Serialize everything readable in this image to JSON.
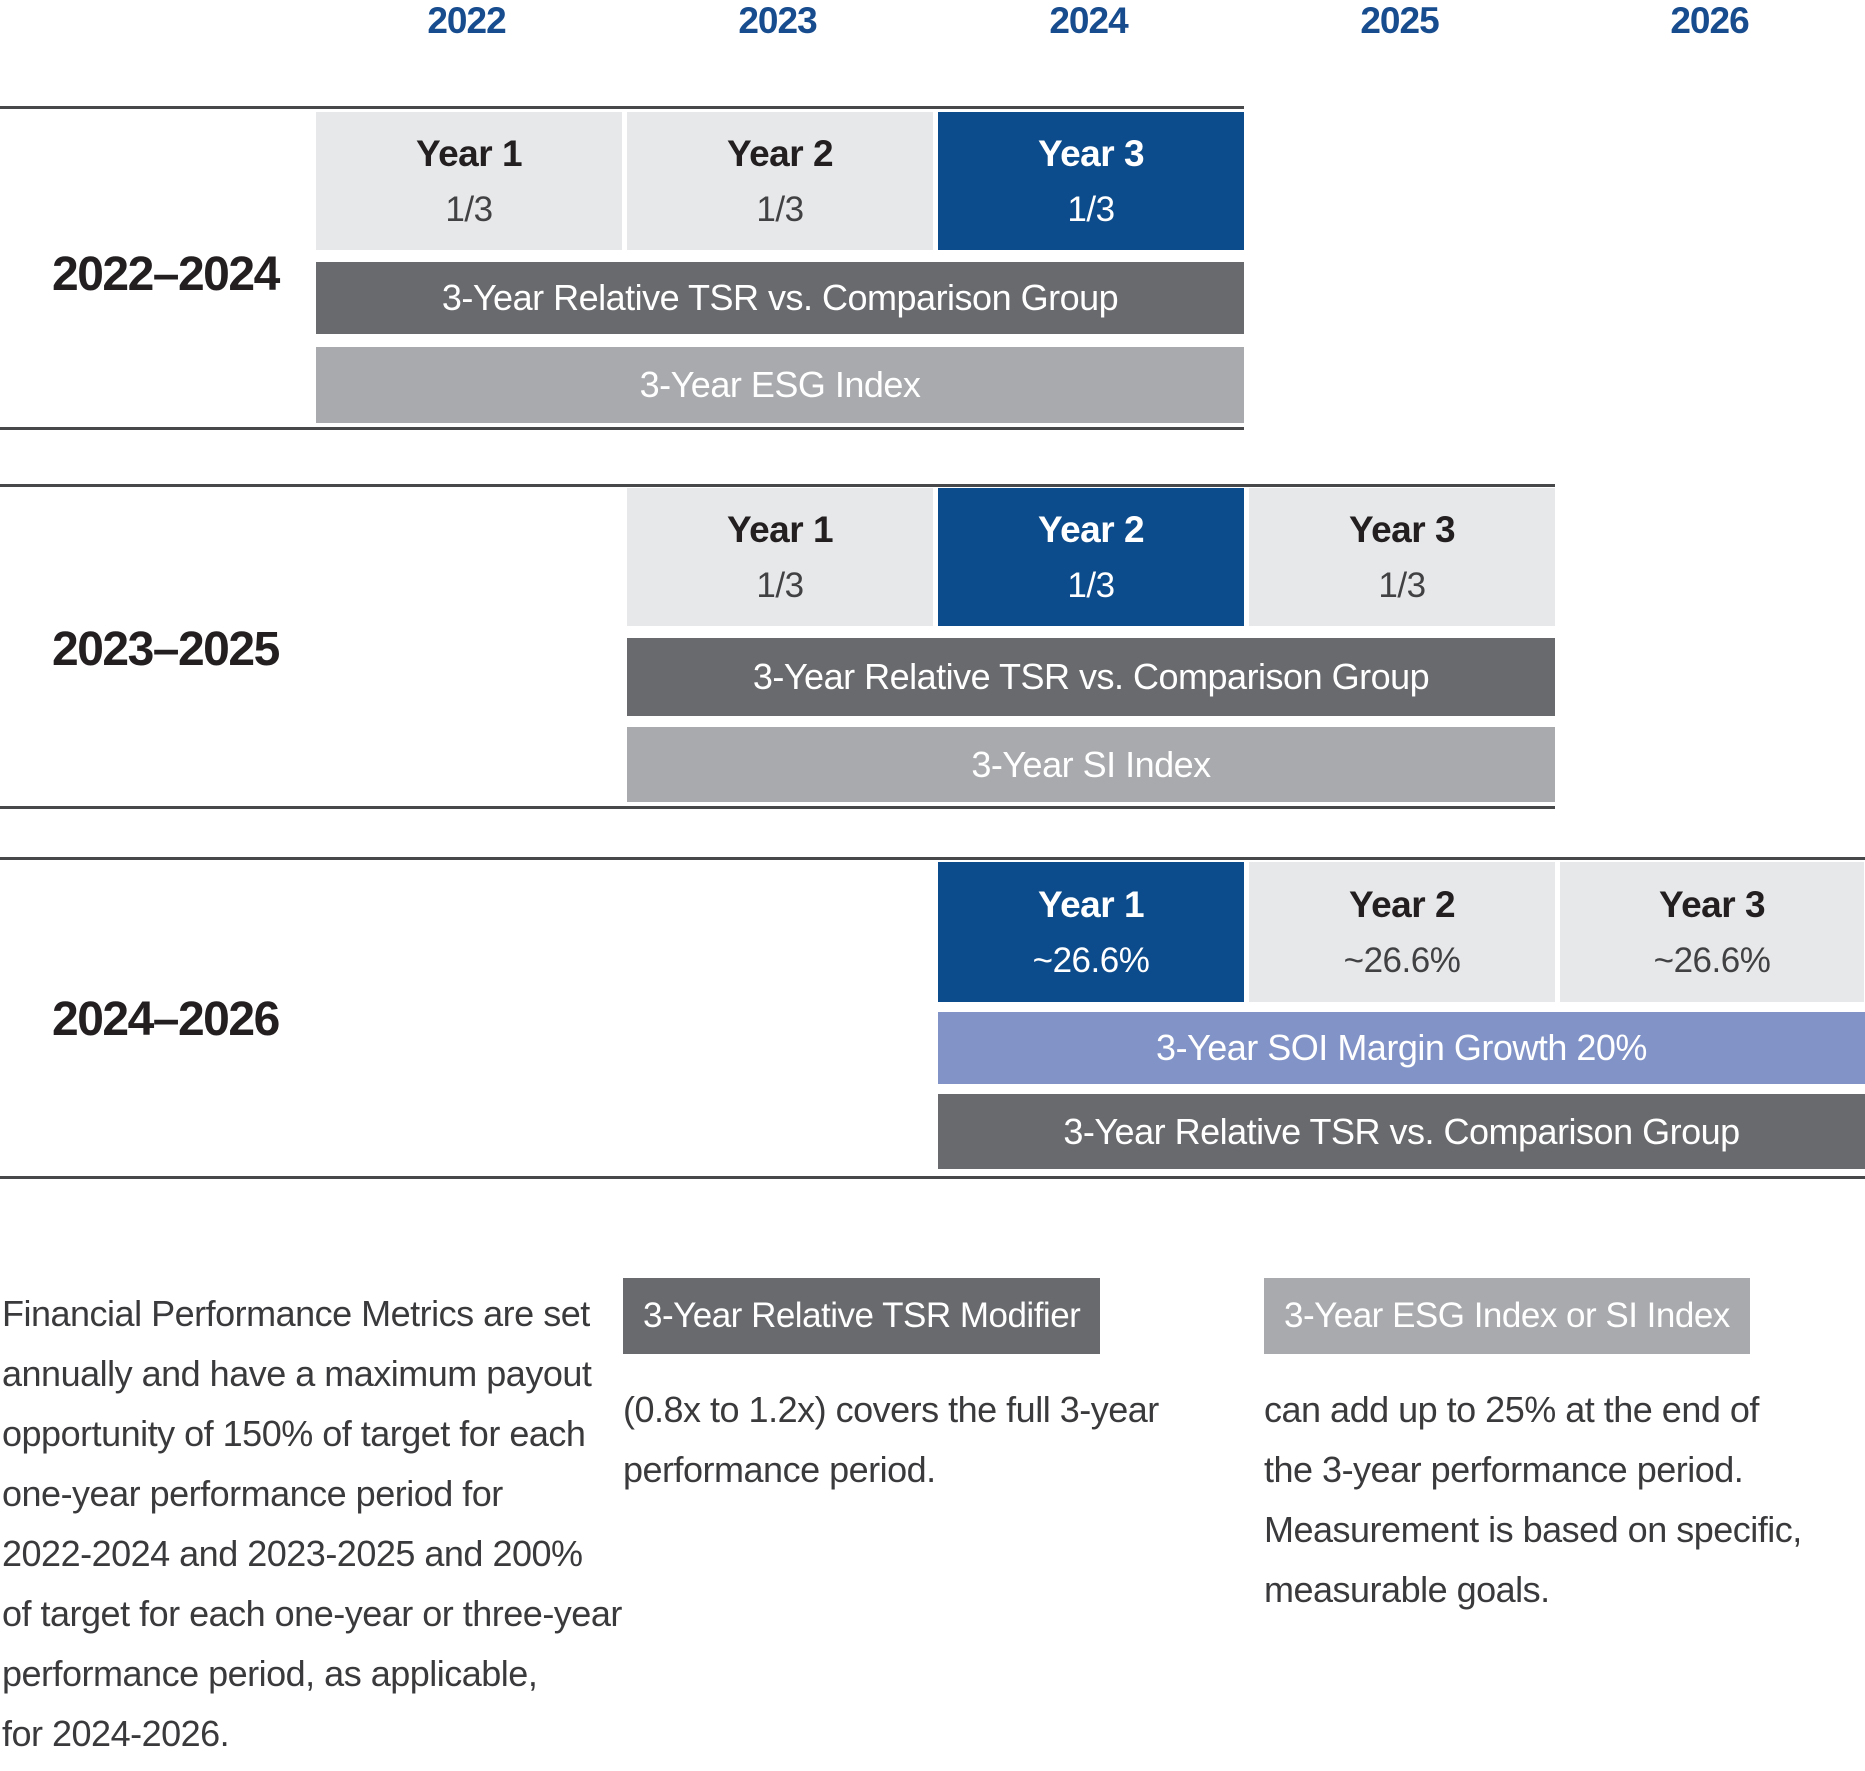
{
  "palette": {
    "highlight_blue": "#0d4c8c",
    "header_blue": "#174c8f",
    "light_box_gray": "#e7e8ea",
    "dark_bar_gray": "#696a6d",
    "mid_bar_gray": "#a8aaad",
    "periwinkle_bar": "#8193c7",
    "divider_line": "#47484a",
    "title_text": "#231f20",
    "body_text": "#3a3a3c"
  },
  "header_years": [
    "2022",
    "2023",
    "2024",
    "2025",
    "2026"
  ],
  "sections": [
    {
      "label": "2022–2024",
      "years": [
        {
          "title": "Year 1",
          "value": "1/3",
          "highlight": false
        },
        {
          "title": "Year 2",
          "value": "1/3",
          "highlight": false
        },
        {
          "title": "Year 3",
          "value": "1/3",
          "highlight": true
        }
      ],
      "bars": [
        {
          "label": "3-Year Relative TSR vs. Comparison Group",
          "color": "#696a6d"
        },
        {
          "label": "3-Year ESG Index",
          "color": "#a8aaad"
        }
      ]
    },
    {
      "label": "2023–2025",
      "years": [
        {
          "title": "Year 1",
          "value": "1/3",
          "highlight": false
        },
        {
          "title": "Year 2",
          "value": "1/3",
          "highlight": true
        },
        {
          "title": "Year 3",
          "value": "1/3",
          "highlight": false
        }
      ],
      "bars": [
        {
          "label": "3-Year Relative TSR vs. Comparison Group",
          "color": "#696a6d"
        },
        {
          "label": "3-Year SI Index",
          "color": "#a8aaad"
        }
      ]
    },
    {
      "label": "2024–2026",
      "years": [
        {
          "title": "Year 1",
          "value": "~26.6%",
          "highlight": true
        },
        {
          "title": "Year 2",
          "value": "~26.6%",
          "highlight": false
        },
        {
          "title": "Year 3",
          "value": "~26.6%",
          "highlight": false
        }
      ],
      "bars": [
        {
          "label": "3-Year SOI Margin Growth 20%",
          "color": "#8193c7"
        },
        {
          "label": "3-Year Relative TSR vs. Comparison Group",
          "color": "#696a6d"
        }
      ]
    }
  ],
  "footnotes": {
    "left": {
      "lines": [
        "Financial Performance Metrics are set",
        "annually and have a maximum payout",
        "opportunity of 150% of target for each",
        "one-year performance period for",
        "2022-2024 and 2023-2025 and 200%",
        "of target for each one-year or three-year",
        "performance period, as applicable,",
        "for 2024-2026."
      ]
    },
    "middle": {
      "chip": "3-Year Relative TSR Modifier",
      "lines": [
        "(0.8x to 1.2x) covers the full 3-year",
        "performance period."
      ]
    },
    "right": {
      "chip": "3-Year ESG Index or SI Index",
      "lines": [
        "can add up to 25% at the end of",
        "the 3-year performance period.",
        "Measurement is based on specific,",
        "measurable goals."
      ]
    }
  }
}
